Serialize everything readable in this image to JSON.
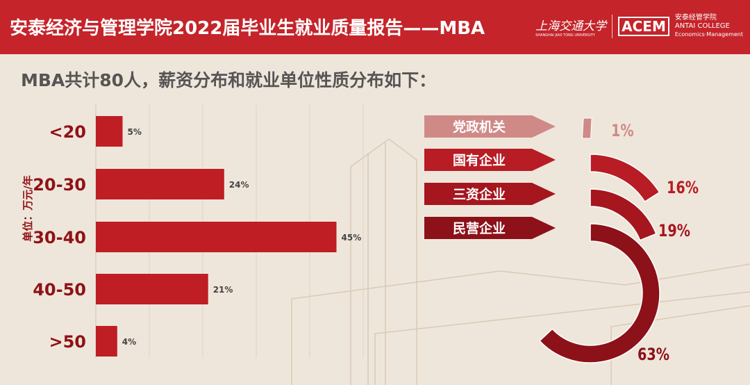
{
  "header": {
    "title": "安泰经济与管理学院2022届毕业生就业质量报告——MBA",
    "logo_sjtu": "上海交通大学",
    "logo_sjtu_en": "SHANGHAI JIAO TONG UNIVERSITY",
    "logo_acem": "ACEM",
    "logo_antai_cn": "安泰经管学院",
    "logo_antai_en": "ANTAI COLLEGE",
    "logo_antai_sub": "Economics·Management"
  },
  "subtitle": "MBA共计80人，薪资分布和就业单位性质分布如下：",
  "colors": {
    "header": "#c4242a",
    "bar": "#be1e24",
    "label": "#8e1216"
  },
  "chart_data": [
    {
      "type": "bar",
      "orientation": "horizontal",
      "ylabel": "单位：万元/年",
      "categories": [
        "<20",
        "20-30",
        "30-40",
        "40-50",
        ">50"
      ],
      "values": [
        5,
        24,
        45,
        21,
        4
      ],
      "data_labels": [
        "5%",
        "24%",
        "45%",
        "21%",
        "4%"
      ],
      "grid": true
    },
    {
      "type": "radial-bar",
      "categories": [
        "党政机关",
        "国有企业",
        "三资企业",
        "民营企业"
      ],
      "values": [
        1,
        16,
        19,
        63
      ],
      "data_labels": [
        "1%",
        "16%",
        "19%",
        "63%"
      ],
      "colors": [
        "#cf8a88",
        "#b81c24",
        "#a5161e",
        "#8c1118"
      ]
    }
  ]
}
